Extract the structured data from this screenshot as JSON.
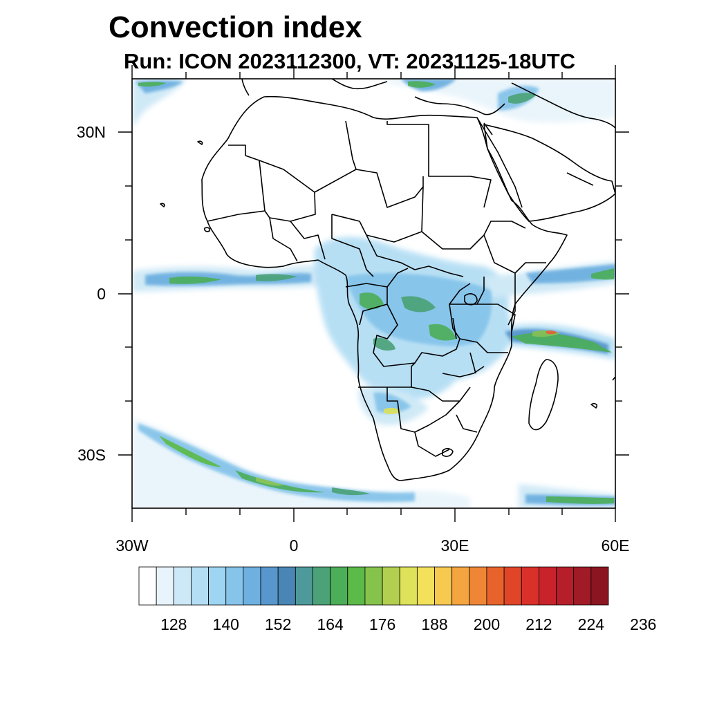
{
  "title": "Convection index",
  "subtitle": "Run: ICON 2023112300,  VT: 20231125-18UTC",
  "map": {
    "region": "Africa",
    "lon_range": [
      -30,
      60
    ],
    "lat_range": [
      -40,
      40
    ],
    "lat_labels": [
      "30N",
      "0",
      "30S"
    ],
    "lon_labels": [
      "30W",
      "0",
      "30E",
      "60E"
    ]
  },
  "colorbar": {
    "colors": [
      "#ffffff",
      "#e8f4fb",
      "#cde8f6",
      "#b4def4",
      "#9ed5f3",
      "#86c4ea",
      "#6eb0e0",
      "#5797cd",
      "#4a86b5",
      "#4e9a9a",
      "#4aa276",
      "#4cae58",
      "#5cba48",
      "#86c34c",
      "#b2cf50",
      "#dde25a",
      "#f3e15c",
      "#f7c94e",
      "#f5a540",
      "#ef8636",
      "#e8632c",
      "#e14528",
      "#d93029",
      "#c8232b",
      "#b61f2a",
      "#a11b26",
      "#8b1520"
    ],
    "labels": [
      "128",
      "140",
      "152",
      "164",
      "176",
      "188",
      "200",
      "212",
      "224",
      "236"
    ]
  }
}
